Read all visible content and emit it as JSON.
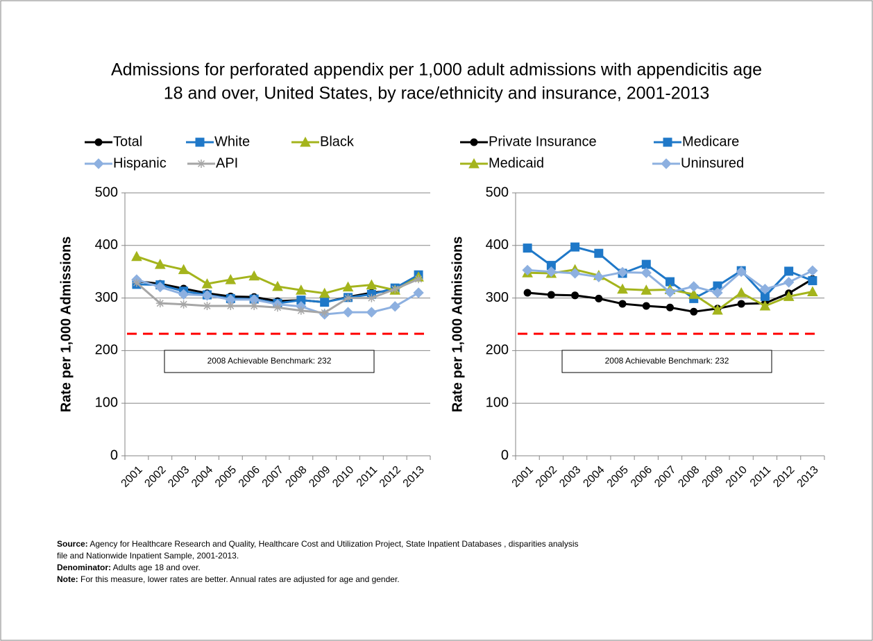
{
  "title": [
    "Admissions for perforated appendix per 1,000 adult admissions with appendicitis age",
    "18 and over, United States, by race/ethnicity and insurance, 2001-2013"
  ],
  "footnotes": [
    {
      "label": "Source:",
      "text": " Agency for Healthcare Research and Quality, Healthcare Cost and Utilization Project, State Inpatient Databases , disparities analysis"
    },
    {
      "label": "",
      "text": "file and Nationwide Inpatient Sample, 2001-2013."
    },
    {
      "label": "Denominator:",
      "text": " Adults age 18 and over."
    },
    {
      "label": "Note:",
      "text": " For this measure, lower rates are better. Annual rates are adjusted for age and gender."
    }
  ],
  "chart_data": [
    {
      "type": "line",
      "ylabel": "Rate per 1,000 Admissions",
      "categories": [
        "2001",
        "2002",
        "2003",
        "2004",
        "2005",
        "2006",
        "2007",
        "2008",
        "2009",
        "2010",
        "2011",
        "2012",
        "2013"
      ],
      "ylim": [
        0,
        500
      ],
      "yticks": [
        0,
        100,
        200,
        300,
        400,
        500
      ],
      "grid": true,
      "benchmark": {
        "value": 232,
        "label": "2008 Achievable Benchmark: 232",
        "color": "#ff0000"
      },
      "series": [
        {
          "name": "Total",
          "color": "#000000",
          "marker": "circle",
          "values": [
            332,
            327,
            318,
            309,
            303,
            302,
            294,
            296,
            292,
            302,
            310,
            315,
            342
          ]
        },
        {
          "name": "White",
          "color": "#1f78c8",
          "marker": "square",
          "values": [
            326,
            325,
            313,
            306,
            299,
            298,
            290,
            296,
            292,
            301,
            307,
            319,
            344
          ]
        },
        {
          "name": "Black",
          "color": "#a4b41c",
          "marker": "triangle",
          "values": [
            379,
            364,
            354,
            327,
            335,
            342,
            322,
            315,
            309,
            321,
            325,
            315,
            340
          ]
        },
        {
          "name": "Hispanic",
          "color": "#8db0e0",
          "marker": "diamond",
          "values": [
            335,
            321,
            307,
            305,
            297,
            297,
            288,
            284,
            269,
            273,
            273,
            284,
            310
          ]
        },
        {
          "name": "API",
          "color": "#a6a6a6",
          "marker": "star",
          "values": [
            329,
            290,
            288,
            285,
            285,
            285,
            282,
            276,
            272,
            300,
            300,
            317,
            336
          ]
        }
      ]
    },
    {
      "type": "line",
      "ylabel": "Rate per 1,000 Admissions",
      "categories": [
        "2001",
        "2002",
        "2003",
        "2004",
        "2005",
        "2006",
        "2007",
        "2008",
        "2009",
        "2010",
        "2011",
        "2012",
        "2013"
      ],
      "ylim": [
        0,
        500
      ],
      "yticks": [
        0,
        100,
        200,
        300,
        400,
        500
      ],
      "grid": true,
      "benchmark": {
        "value": 232,
        "label": "2008 Achievable Benchmark: 232",
        "color": "#ff0000"
      },
      "series": [
        {
          "name": "Private Insurance",
          "color": "#000000",
          "marker": "circle",
          "values": [
            310,
            306,
            305,
            299,
            289,
            285,
            282,
            274,
            280,
            289,
            290,
            309,
            336
          ]
        },
        {
          "name": "Medicare",
          "color": "#1f78c8",
          "marker": "square",
          "values": [
            395,
            362,
            397,
            385,
            347,
            364,
            331,
            299,
            323,
            352,
            303,
            351,
            333
          ]
        },
        {
          "name": "Medicaid",
          "color": "#a4b41c",
          "marker": "triangle",
          "values": [
            348,
            347,
            354,
            343,
            317,
            315,
            316,
            307,
            277,
            310,
            285,
            303,
            312
          ]
        },
        {
          "name": "Uninsured",
          "color": "#8db0e0",
          "marker": "diamond",
          "values": [
            353,
            350,
            347,
            340,
            349,
            348,
            311,
            322,
            310,
            350,
            317,
            330,
            352
          ]
        }
      ]
    }
  ]
}
